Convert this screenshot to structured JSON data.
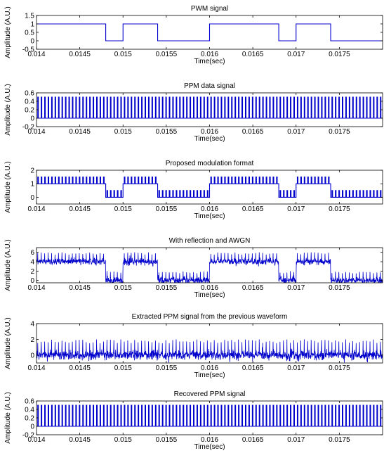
{
  "chart_data": [
    {
      "type": "line",
      "title": "PWM signal",
      "xlabel": "Time(sec)",
      "ylabel": "Amplitude (A.U.)",
      "xlim": [
        0.014,
        0.018
      ],
      "ylim": [
        -0.5,
        1.5
      ],
      "xticks": [
        0.014,
        0.0145,
        0.015,
        0.0155,
        0.016,
        0.0165,
        0.017,
        0.0175
      ],
      "xtick_labels": [
        "0.014",
        "0.0145",
        "0.015",
        "0.0155",
        "0.016",
        "0.0165",
        "0.017",
        "0.0175"
      ],
      "yticks": [
        -0.5,
        0,
        0.5,
        1,
        1.5
      ],
      "ytick_labels": [
        "-0.5",
        "0",
        "0.5",
        "1",
        "1.5"
      ],
      "grid": false,
      "color": "#0000cc",
      "series": [
        {
          "x": [
            0.014,
            0.0148,
            0.0148,
            0.015,
            0.015,
            0.0154,
            0.0154,
            0.016,
            0.016,
            0.0168,
            0.0168,
            0.017,
            0.017,
            0.0174,
            0.0174,
            0.018
          ],
          "y": [
            1,
            1,
            0,
            0,
            1,
            1,
            0,
            0,
            1,
            1,
            0,
            0,
            1,
            1,
            0,
            0
          ]
        }
      ]
    },
    {
      "type": "line",
      "title": "PPM data signal",
      "xlabel": "Time(sec)",
      "ylabel": "Amplitude (A.U.)",
      "xlim": [
        0.014,
        0.018
      ],
      "ylim": [
        -0.2,
        0.6
      ],
      "xticks": [
        0.014,
        0.0145,
        0.015,
        0.0155,
        0.016,
        0.0165,
        0.017,
        0.0175
      ],
      "xtick_labels": [
        "0.014",
        "0.0145",
        "0.015",
        "0.0155",
        "0.016",
        "0.0165",
        "0.017",
        "0.0175"
      ],
      "yticks": [
        -0.2,
        0,
        0.2,
        0.4,
        0.6
      ],
      "ytick_labels": [
        "-0.2",
        "0",
        "0.2",
        "0.4",
        "0.6"
      ],
      "grid": false,
      "color": "#0000cc",
      "pulse_period": 4e-05,
      "pulse_high": 0.5,
      "pulse_low": 0
    },
    {
      "type": "line",
      "title": "Proposed modulation format",
      "xlabel": "Time(sec)",
      "ylabel": "Amplitude (A.U.)",
      "xlim": [
        0.014,
        0.018
      ],
      "ylim": [
        -0.5,
        2
      ],
      "xticks": [
        0.014,
        0.0145,
        0.015,
        0.0155,
        0.016,
        0.0165,
        0.017,
        0.0175
      ],
      "xtick_labels": [
        "0.014",
        "0.0145",
        "0.015",
        "0.0155",
        "0.016",
        "0.0165",
        "0.017",
        "0.0175"
      ],
      "yticks": [
        0,
        1,
        2
      ],
      "ytick_labels": [
        "0",
        "1",
        "2"
      ],
      "grid": false,
      "color": "#0000cc",
      "base_high": 1,
      "base_low": 0,
      "pulse_add": 0.5,
      "pulse_period": 4e-05
    },
    {
      "type": "line",
      "title": "With reflection and AWGN",
      "xlabel": "Time(sec)",
      "ylabel": "Amplitude (A.U.)",
      "xlim": [
        0.014,
        0.018
      ],
      "ylim": [
        -0.5,
        7
      ],
      "xticks": [
        0.014,
        0.0145,
        0.015,
        0.0155,
        0.016,
        0.0165,
        0.017,
        0.0175
      ],
      "xtick_labels": [
        "0.014",
        "0.0145",
        "0.015",
        "0.0155",
        "0.016",
        "0.0165",
        "0.017",
        "0.0175"
      ],
      "yticks": [
        0,
        2,
        4,
        6
      ],
      "ytick_labels": [
        "0",
        "2",
        "4",
        "6"
      ],
      "grid": false,
      "color": "#0000cc",
      "base_high": 4,
      "base_low": 0,
      "pulse_add": 2,
      "noise": 0.35
    },
    {
      "type": "line",
      "title": "Extracted PPM signal from the previous waveform",
      "xlabel": "Time(sec)",
      "ylabel": "Amplitude (A.U.)",
      "xlim": [
        0.014,
        0.018
      ],
      "ylim": [
        -1,
        4
      ],
      "xticks": [
        0.014,
        0.0145,
        0.015,
        0.0155,
        0.016,
        0.0165,
        0.017,
        0.0175
      ],
      "xtick_labels": [
        "0.014",
        "0.0145",
        "0.015",
        "0.0155",
        "0.016",
        "0.0165",
        "0.017",
        "0.0175"
      ],
      "yticks": [
        0,
        2,
        4
      ],
      "ytick_labels": [
        "0",
        "2",
        "4"
      ],
      "grid": false,
      "color": "#0000cc",
      "base": 0,
      "pulse_add": 2,
      "noise": 0.3
    },
    {
      "type": "line",
      "title": "Recovered PPM signal",
      "xlabel": "Time(sec)",
      "ylabel": "Amplitude (A.U.)",
      "xlim": [
        0.014,
        0.018
      ],
      "ylim": [
        -0.2,
        0.6
      ],
      "xticks": [
        0.014,
        0.0145,
        0.015,
        0.0155,
        0.016,
        0.0165,
        0.017,
        0.0175
      ],
      "xtick_labels": [
        "0.014",
        "0.0145",
        "0.015",
        "0.0155",
        "0.016",
        "0.0165",
        "0.017",
        "0.0175"
      ],
      "yticks": [
        -0.2,
        0,
        0.2,
        0.4,
        0.6
      ],
      "ytick_labels": [
        "-0.2",
        "0",
        "0.2",
        "0.4",
        "0.6"
      ],
      "grid": false,
      "color": "#0000cc",
      "pulse_period": 4e-05,
      "pulse_high": 0.5,
      "pulse_low": 0
    }
  ]
}
